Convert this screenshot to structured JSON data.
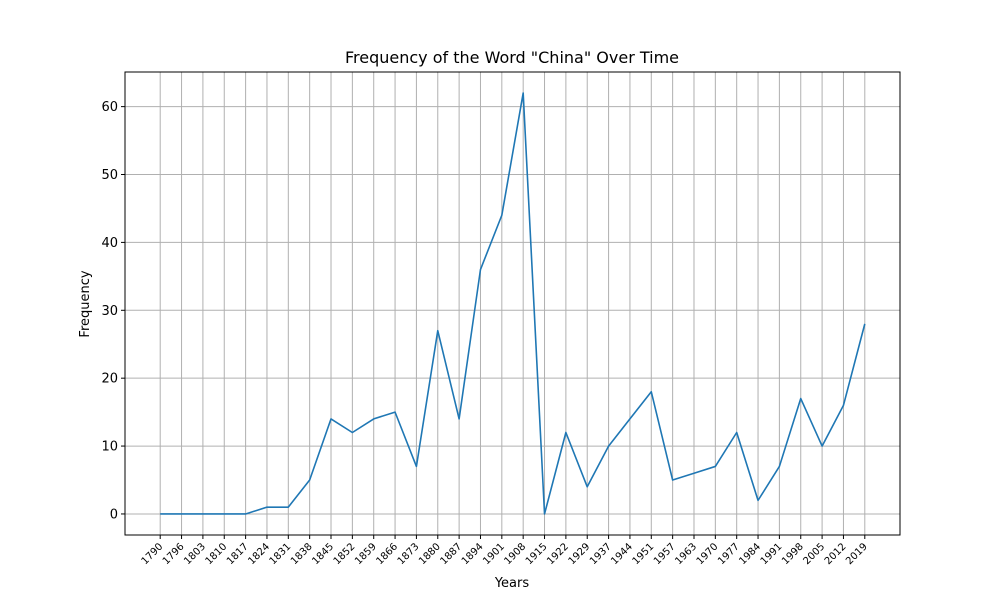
{
  "chart_data": {
    "type": "line",
    "title": "Frequency of the Word \"China\" Over Time",
    "xlabel": "Years",
    "ylabel": "Frequency",
    "ylim": [
      -3.1,
      65.1
    ],
    "yticks": [
      0,
      10,
      20,
      30,
      40,
      50,
      60
    ],
    "grid": true,
    "legend": "none",
    "color": "#1f77b4",
    "categories": [
      "1790",
      "1796",
      "1803",
      "1810",
      "1817",
      "1824",
      "1831",
      "1838",
      "1845",
      "1852",
      "1859",
      "1866",
      "1873",
      "1880",
      "1887",
      "1894",
      "1901",
      "1908",
      "1915",
      "1922",
      "1929",
      "1937",
      "1944",
      "1951",
      "1957",
      "1963",
      "1970",
      "1977",
      "1984",
      "1991",
      "1998",
      "2005",
      "2012",
      "2019"
    ],
    "series": [
      {
        "values": [
          0,
          0,
          0,
          0,
          0,
          1,
          1,
          5,
          14,
          12,
          14,
          15,
          7,
          27,
          14,
          36,
          44,
          62,
          0,
          12,
          4,
          10,
          14,
          18,
          5,
          6,
          7,
          12,
          2,
          7,
          17,
          10,
          16,
          28
        ]
      }
    ]
  }
}
